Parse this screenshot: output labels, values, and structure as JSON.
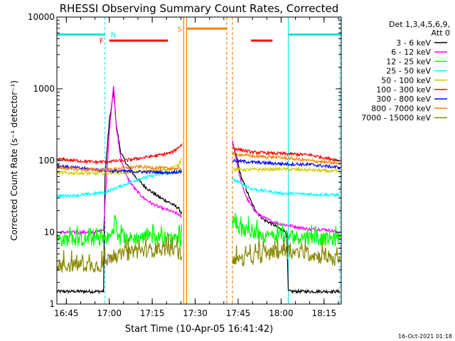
{
  "chart_data": {
    "type": "line",
    "title": "RHESSI Observing Summary Count Rates, Corrected",
    "xlabel": "Start Time (10-Apr-05 16:41:42)",
    "ylabel": "Corrected Count Rate (s⁻¹ detector⁻¹)",
    "yscale": "log",
    "ylim": [
      1,
      10000
    ],
    "xlim": [
      "16:41:42",
      "18:21:00"
    ],
    "xticks": [
      "16:45",
      "17:00",
      "17:15",
      "17:30",
      "17:45",
      "18:00",
      "18:15"
    ],
    "yticks": [
      "1",
      "10",
      "100",
      "1000",
      "10000"
    ],
    "legend_header": [
      "Det 1,3,4,5,6,9,",
      "Att 0"
    ],
    "timestamp": "16-Oct-2021 01:18",
    "flag_labels": {
      "n": "N",
      "f": "F",
      "s": "S"
    },
    "flags": {
      "night": {
        "color": "#00e5e5",
        "intervals": [
          [
            "16:41:42",
            "16:58:30"
          ],
          [
            "18:02:30",
            "18:21:00"
          ]
        ],
        "level": 5700
      },
      "flare": {
        "color": "#ff0000",
        "intervals": [
          [
            "17:00:00",
            "17:20:30"
          ],
          [
            "17:49:30",
            "17:57:00"
          ]
        ],
        "level": 4700
      },
      "saa": {
        "color": "#ff8000",
        "intervals": [
          [
            "17:27:00",
            "17:41:00"
          ]
        ],
        "level": 6900
      }
    },
    "gap": [
      "17:26:00",
      "17:43:00"
    ],
    "night_boundaries": {
      "solid": [
        "16:41:42",
        "18:02:30"
      ],
      "dashed": [
        "16:58:30",
        "18:20:30"
      ]
    },
    "saa_boundaries": {
      "solid": [
        "17:26:00",
        "17:27:00"
      ],
      "dashed": [
        "17:41:00",
        "17:43:00"
      ]
    },
    "series": [
      {
        "name": "3 - 6 keV",
        "color": "#000000",
        "x": [
          "16:41:42",
          "16:58:00",
          "16:58:30",
          "17:00:00",
          "17:01:30",
          "17:02:30",
          "17:04:00",
          "17:06:00",
          "17:09:00",
          "17:12:00",
          "17:15:00",
          "17:18:00",
          "17:21:00",
          "17:24:00",
          "17:25:30",
          "17:43:00",
          "17:44:00",
          "17:46:00",
          "17:48:00",
          "17:50:00",
          "17:52:00",
          "17:54:00",
          "17:57:00",
          "18:00:00",
          "18:02:00",
          "18:02:30",
          "18:20:30"
        ],
        "y": [
          1.5,
          1.5,
          60,
          350,
          900,
          300,
          130,
          90,
          60,
          45,
          36,
          30,
          26,
          22,
          18,
          170,
          130,
          60,
          38,
          24,
          18,
          15,
          13,
          11,
          10,
          1.5,
          1.5
        ]
      },
      {
        "name": "6 - 12 keV",
        "color": "#ff00ff",
        "x": [
          "16:41:42",
          "16:55:00",
          "16:58:00",
          "17:00:00",
          "17:01:30",
          "17:02:30",
          "17:04:00",
          "17:06:00",
          "17:09:00",
          "17:12:00",
          "17:15:00",
          "17:18:00",
          "17:21:00",
          "17:24:00",
          "17:25:30",
          "17:43:00",
          "17:44:00",
          "17:46:00",
          "17:48:00",
          "17:50:00",
          "17:52:00",
          "17:54:00",
          "17:57:00",
          "18:00:00",
          "18:05:00",
          "18:10:00",
          "18:15:00",
          "18:20:30"
        ],
        "y": [
          10,
          10,
          11,
          250,
          1100,
          280,
          110,
          60,
          40,
          30,
          25,
          22,
          20,
          18,
          16,
          200,
          120,
          50,
          30,
          22,
          18,
          16,
          14,
          13,
          12,
          11,
          11,
          10
        ]
      },
      {
        "name": "12 - 25 keV",
        "color": "#00ff00",
        "x": [
          "16:41:42",
          "16:58:00",
          "17:01:00",
          "17:02:00",
          "17:03:00",
          "17:10:00",
          "17:20:00",
          "17:25:30",
          "17:43:00",
          "17:46:00",
          "17:50:00",
          "17:55:00",
          "18:00:00",
          "18:10:00",
          "18:20:30"
        ],
        "y": [
          8,
          8,
          9,
          15,
          8,
          8.5,
          8.5,
          8,
          15,
          11,
          10,
          9,
          9,
          8.5,
          8
        ],
        "noisy": true
      },
      {
        "name": "25 - 50 keV",
        "color": "#00ffff",
        "x": [
          "16:41:42",
          "16:50:00",
          "16:58:30",
          "17:10:00",
          "17:18:00",
          "17:24:00",
          "17:25:30",
          "17:43:00",
          "17:50:00",
          "18:00:00",
          "18:10:00",
          "18:20:30"
        ],
        "y": [
          32,
          33,
          36,
          55,
          65,
          70,
          75,
          55,
          40,
          35,
          34,
          33
        ]
      },
      {
        "name": "50 - 100 keV",
        "color": "#cccc00",
        "x": [
          "16:41:42",
          "16:55:00",
          "17:05:00",
          "17:15:00",
          "17:20:00",
          "17:24:00",
          "17:25:30",
          "17:43:00",
          "17:50:00",
          "18:00:00",
          "18:10:00",
          "18:20:30"
        ],
        "y": [
          68,
          66,
          68,
          72,
          75,
          85,
          110,
          75,
          75,
          76,
          74,
          70
        ]
      },
      {
        "name": "100 - 300 keV",
        "color": "#ff0000",
        "x": [
          "16:41:42",
          "16:55:00",
          "17:05:00",
          "17:12:00",
          "17:18:00",
          "17:22:00",
          "17:25:30",
          "17:43:00",
          "17:50:00",
          "18:00:00",
          "18:10:00",
          "18:20:30"
        ],
        "y": [
          105,
          95,
          100,
          110,
          120,
          130,
          170,
          150,
          130,
          125,
          120,
          100
        ]
      },
      {
        "name": "300 - 800 keV",
        "color": "#0000ff",
        "x": [
          "16:41:42",
          "16:50:00",
          "17:00:00",
          "17:10:00",
          "17:20:00",
          "17:25:30",
          "17:43:00",
          "17:50:00",
          "18:00:00",
          "18:10:00",
          "18:20:30"
        ],
        "y": [
          85,
          78,
          72,
          70,
          68,
          70,
          100,
          95,
          90,
          88,
          80
        ]
      },
      {
        "name": "800 - 7000 keV",
        "color": "#ff8000",
        "x": [
          "16:41:42",
          "16:50:00",
          "17:00:00",
          "17:10:00",
          "17:20:00",
          "17:25:30",
          "17:43:00",
          "17:50:00",
          "18:00:00",
          "18:10:00",
          "18:20:30"
        ],
        "y": [
          80,
          75,
          75,
          82,
          78,
          76,
          125,
          115,
          110,
          100,
          90
        ]
      },
      {
        "name": "7000 - 15000 keV",
        "color": "#888800",
        "x": [
          "16:41:42",
          "16:58:00",
          "17:00:00",
          "17:10:00",
          "17:20:00",
          "17:25:30",
          "17:43:00",
          "17:50:00",
          "18:00:00",
          "18:10:00",
          "18:20:30"
        ],
        "y": [
          3.5,
          3.5,
          4.5,
          5.5,
          6,
          5,
          4,
          4.5,
          5.5,
          5,
          4
        ],
        "noisy": true
      }
    ]
  }
}
